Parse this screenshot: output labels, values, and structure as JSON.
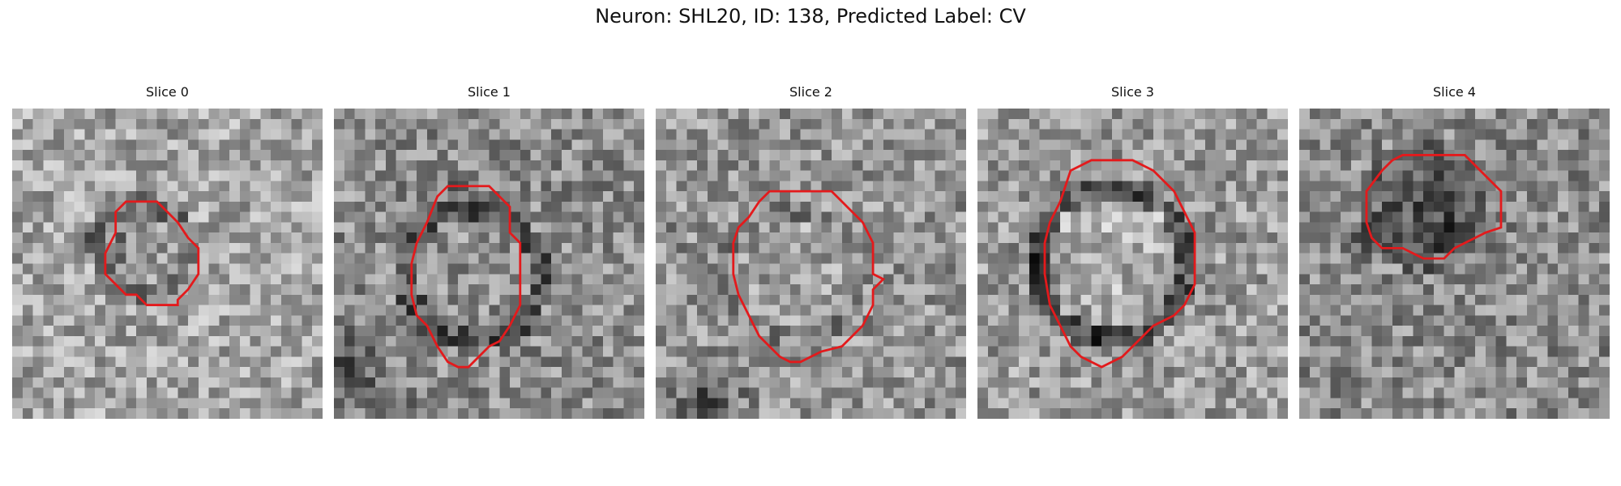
{
  "figure": {
    "title": "Neuron: SHL20, ID: 138, Predicted Label: CV",
    "outline_color": "#e31a1c"
  },
  "panels": [
    {
      "title": "Slice 0"
    },
    {
      "title": "Slice 1"
    },
    {
      "title": "Slice 2"
    },
    {
      "title": "Slice 3"
    },
    {
      "title": "Slice 4"
    }
  ]
}
